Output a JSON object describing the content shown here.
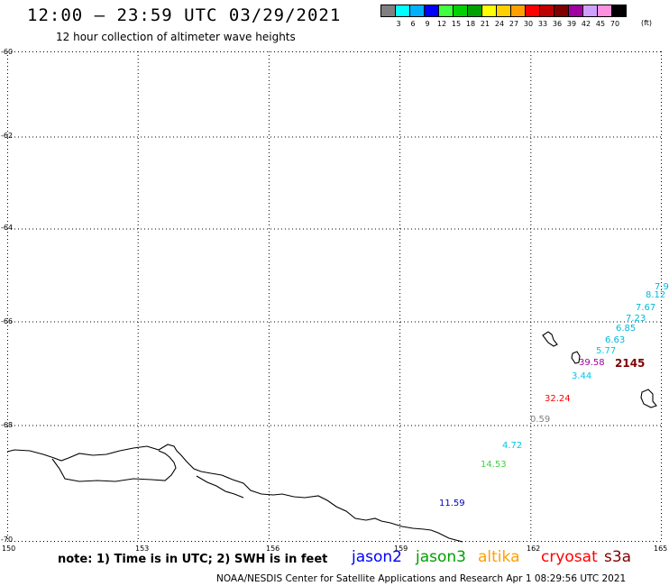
{
  "title": "12:00 – 23:59 UTC 03/29/2021",
  "subtitle": "12 hour collection of altimeter wave heights",
  "legend": {
    "unit": "(ft)",
    "items": [
      {
        "label": "3",
        "color": "#808080"
      },
      {
        "label": "6",
        "color": "#00ffff"
      },
      {
        "label": "9",
        "color": "#00b0ff"
      },
      {
        "label": "12",
        "color": "#0000ff"
      },
      {
        "label": "15",
        "color": "#40ff40"
      },
      {
        "label": "18",
        "color": "#00d000"
      },
      {
        "label": "21",
        "color": "#00a000"
      },
      {
        "label": "24",
        "color": "#ffff00"
      },
      {
        "label": "27",
        "color": "#ffd000"
      },
      {
        "label": "30",
        "color": "#ffa000"
      },
      {
        "label": "33",
        "color": "#ff0000"
      },
      {
        "label": "36",
        "color": "#c00000"
      },
      {
        "label": "39",
        "color": "#800000"
      },
      {
        "label": "42",
        "color": "#a000a0"
      },
      {
        "label": "45",
        "color": "#d0a0ff"
      },
      {
        "label": "70",
        "color": "#ff90e0"
      },
      {
        "label": "",
        "color": "#000000"
      }
    ]
  },
  "map": {
    "lon_ticks": [
      "150",
      "153",
      "156",
      "159",
      "162",
      "165"
    ],
    "lat_ticks": [
      "-60",
      "-62",
      "-64",
      "-66",
      "-68",
      "-70"
    ],
    "observations": [
      {
        "value": "7.9",
        "color": "#00b8d8"
      },
      {
        "value": "8.12",
        "color": "#00b8d8"
      },
      {
        "value": "7.67",
        "color": "#00b8d8"
      },
      {
        "value": "7.23",
        "color": "#00b8d8"
      },
      {
        "value": "6.85",
        "color": "#00b8d8"
      },
      {
        "value": "6.63",
        "color": "#00b8d8"
      },
      {
        "value": "5.77",
        "color": "#00c8e8"
      },
      {
        "value": "39.58",
        "color": "#a000a0"
      },
      {
        "value": "2145",
        "color": "#800000"
      },
      {
        "value": "3.44",
        "color": "#00c8e8"
      },
      {
        "value": "32.24",
        "color": "#ff0000"
      },
      {
        "value": "0.59",
        "color": "#808080"
      },
      {
        "value": "4.72",
        "color": "#00c8e8"
      },
      {
        "value": "14.53",
        "color": "#40d040"
      },
      {
        "value": "11.59",
        "color": "#0000c0"
      }
    ]
  },
  "note": "note: 1) Time is in UTC; 2) SWH is in feet",
  "satellites": [
    {
      "name": "jason2",
      "color": "#0000ff"
    },
    {
      "name": "jason3",
      "color": "#00a000"
    },
    {
      "name": "altika",
      "color": "#ffa000"
    },
    {
      "name": "cryosat",
      "color": "#ff0000"
    },
    {
      "name": "s3a",
      "color": "#800000"
    }
  ],
  "footer": "NOAA/NESDIS Center for Satellite Applications and Research   Apr  1 08:29:56 UTC 2021"
}
